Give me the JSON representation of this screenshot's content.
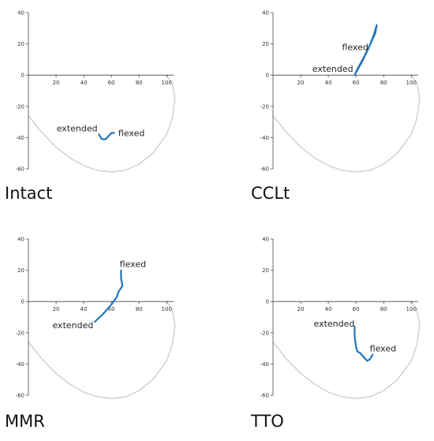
{
  "colors": {
    "axis": "#444444",
    "boundary": "#cfcfcf",
    "series": "#2277bb"
  },
  "chart_data": [
    {
      "type": "line",
      "title": "Intact",
      "xticks": [
        20,
        40,
        60,
        80,
        100
      ],
      "yticks": [
        40,
        20,
        0,
        -20,
        -40,
        -60
      ],
      "xlim": [
        0,
        105
      ],
      "ylim": [
        -60,
        40
      ],
      "boundary": {
        "x": [
          0,
          10,
          20,
          30,
          40,
          50,
          60,
          70,
          80,
          90,
          100,
          104,
          106,
          104,
          100
        ],
        "y": [
          -26,
          -37,
          -46,
          -53,
          -58,
          -61,
          -62,
          -61,
          -57,
          -50,
          -38,
          -28,
          -15,
          -5,
          0
        ]
      },
      "series": [
        {
          "x": [
            51,
            53,
            56,
            58,
            60,
            62
          ],
          "y": [
            -38,
            -41,
            -41,
            -39,
            -37,
            -37
          ]
        }
      ],
      "annotations": [
        {
          "text": "extended",
          "x": 50,
          "y": -36,
          "anchor": "end"
        },
        {
          "text": "flexed",
          "x": 65,
          "y": -39,
          "anchor": "start"
        }
      ]
    },
    {
      "type": "line",
      "title": "CCLt",
      "xticks": [
        20,
        40,
        60,
        80,
        100
      ],
      "yticks": [
        40,
        20,
        0,
        -20,
        -40,
        -60
      ],
      "xlim": [
        0,
        105
      ],
      "ylim": [
        -60,
        40
      ],
      "boundary": {
        "x": [
          0,
          10,
          20,
          30,
          40,
          50,
          60,
          70,
          80,
          90,
          100,
          104,
          106,
          104,
          100
        ],
        "y": [
          -26,
          -37,
          -46,
          -53,
          -58,
          -61,
          -62,
          -61,
          -57,
          -50,
          -38,
          -28,
          -15,
          -5,
          0
        ]
      },
      "series": [
        {
          "x": [
            59,
            64,
            69,
            73,
            75,
            74,
            71,
            66,
            60
          ],
          "y": [
            0,
            8,
            17,
            26,
            32,
            27,
            21,
            12,
            2
          ]
        }
      ],
      "annotations": [
        {
          "text": "flexed",
          "x": 69,
          "y": 16,
          "anchor": "end"
        },
        {
          "text": "extended",
          "x": 58,
          "y": 2,
          "anchor": "end"
        }
      ]
    },
    {
      "type": "line",
      "title": "MMR",
      "xticks": [
        20,
        40,
        60,
        80,
        100
      ],
      "yticks": [
        40,
        20,
        0,
        -20,
        -40,
        -60
      ],
      "xlim": [
        0,
        105
      ],
      "ylim": [
        -60,
        40
      ],
      "boundary": {
        "x": [
          0,
          10,
          20,
          30,
          40,
          50,
          60,
          70,
          80,
          90,
          100,
          104,
          106,
          104,
          100
        ],
        "y": [
          -26,
          -37,
          -46,
          -53,
          -58,
          -61,
          -62,
          -61,
          -57,
          -50,
          -38,
          -28,
          -15,
          -5,
          0
        ]
      },
      "series": [
        {
          "x": [
            48,
            54,
            60,
            64,
            65,
            68,
            67,
            67
          ],
          "y": [
            -13,
            -8,
            -2,
            3,
            6,
            10,
            15,
            20
          ]
        }
      ],
      "annotations": [
        {
          "text": "flexed",
          "x": 66,
          "y": 22,
          "anchor": "start"
        },
        {
          "text": "extended",
          "x": 47,
          "y": -17,
          "anchor": "end"
        }
      ]
    },
    {
      "type": "line",
      "title": "TTO",
      "xticks": [
        20,
        40,
        60,
        80,
        100
      ],
      "yticks": [
        40,
        20,
        0,
        -20,
        -40,
        -60
      ],
      "xlim": [
        0,
        105
      ],
      "ylim": [
        -60,
        40
      ],
      "boundary": {
        "x": [
          0,
          10,
          20,
          30,
          40,
          50,
          60,
          70,
          80,
          90,
          100,
          104,
          106,
          104,
          100
        ],
        "y": [
          -26,
          -37,
          -46,
          -53,
          -58,
          -61,
          -62,
          -61,
          -57,
          -50,
          -38,
          -28,
          -15,
          -5,
          0
        ]
      },
      "series": [
        {
          "x": [
            59,
            59,
            60,
            61,
            63,
            66,
            68,
            70,
            72
          ],
          "y": [
            -16,
            -22,
            -29,
            -32,
            -33,
            -36,
            -38,
            -37,
            -34
          ]
        }
      ],
      "annotations": [
        {
          "text": "extended",
          "x": 59,
          "y": -16,
          "anchor": "end"
        },
        {
          "text": "flexed",
          "x": 70,
          "y": -32,
          "anchor": "start"
        }
      ]
    }
  ]
}
